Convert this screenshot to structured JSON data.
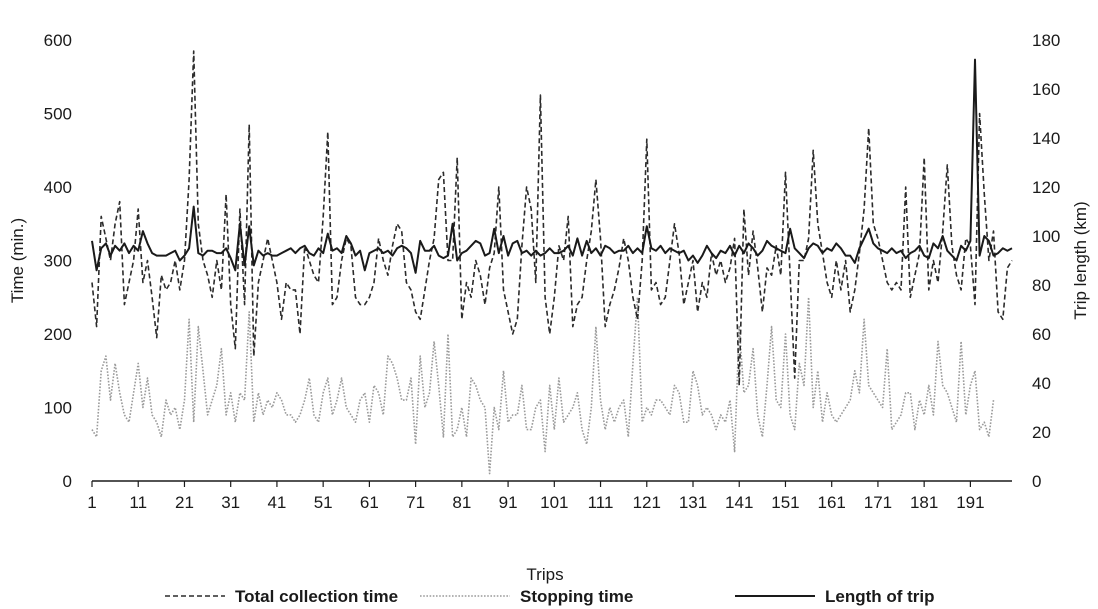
{
  "chart_data": {
    "type": "line",
    "title": "",
    "xlabel": "Trips",
    "ylabel": "Time (min.)",
    "y2label": "Trip length (km)",
    "xlim": [
      1,
      200
    ],
    "ylim": [
      0,
      600
    ],
    "y2lim": [
      0,
      180
    ],
    "grid": false,
    "legend_position": "bottom",
    "x_ticks": [
      "1",
      "11",
      "21",
      "31",
      "41",
      "51",
      "61",
      "71",
      "81",
      "91",
      "101",
      "111",
      "121",
      "131",
      "141",
      "151",
      "161",
      "171",
      "181",
      "191"
    ],
    "y_ticks": [
      "0",
      "100",
      "200",
      "300",
      "400",
      "500",
      "600"
    ],
    "y2_ticks": [
      "0",
      "20",
      "40",
      "60",
      "80",
      "100",
      "120",
      "140",
      "160",
      "180"
    ],
    "series": [
      {
        "name": "Total collection time",
        "axis": "left",
        "style": "dashed",
        "color": "#2b2b2b",
        "values": [
          270,
          210,
          360,
          330,
          300,
          350,
          380,
          240,
          270,
          300,
          370,
          270,
          300,
          250,
          195,
          280,
          260,
          270,
          300,
          260,
          300,
          410,
          585,
          350,
          300,
          280,
          250,
          300,
          260,
          390,
          240,
          180,
          370,
          240,
          485,
          170,
          270,
          300,
          330,
          300,
          270,
          220,
          270,
          260,
          260,
          200,
          320,
          300,
          280,
          270,
          360,
          475,
          240,
          250,
          300,
          330,
          320,
          250,
          240,
          240,
          250,
          270,
          330,
          300,
          280,
          320,
          350,
          340,
          270,
          260,
          230,
          220,
          260,
          300,
          330,
          410,
          420,
          300,
          300,
          440,
          220,
          270,
          250,
          300,
          280,
          240,
          290,
          310,
          400,
          260,
          230,
          200,
          220,
          320,
          400,
          370,
          270,
          525,
          250,
          200,
          250,
          320,
          300,
          360,
          210,
          240,
          250,
          300,
          340,
          410,
          330,
          210,
          240,
          260,
          290,
          330,
          300,
          250,
          220,
          300,
          465,
          260,
          270,
          240,
          250,
          300,
          350,
          310,
          240,
          270,
          300,
          230,
          270,
          250,
          310,
          280,
          300,
          270,
          290,
          330,
          130,
          370,
          280,
          340,
          290,
          230,
          290,
          280,
          320,
          280,
          420,
          280,
          140,
          300,
          300,
          330,
          450,
          350,
          310,
          270,
          250,
          300,
          260,
          300,
          230,
          260,
          310,
          370,
          480,
          350,
          330,
          300,
          270,
          260,
          270,
          260,
          400,
          250,
          280,
          310,
          440,
          260,
          300,
          270,
          340,
          430,
          320,
          280,
          260,
          330,
          320,
          240,
          500,
          390,
          300,
          340,
          230,
          220,
          290,
          300
        ]
      },
      {
        "name": "Stopping time",
        "axis": "left",
        "style": "dotted",
        "color": "#9a9a9a",
        "values": [
          70,
          60,
          150,
          170,
          110,
          160,
          120,
          90,
          80,
          120,
          160,
          100,
          140,
          90,
          80,
          60,
          110,
          90,
          100,
          70,
          110,
          220,
          80,
          210,
          150,
          90,
          110,
          130,
          180,
          90,
          120,
          80,
          120,
          110,
          230,
          80,
          120,
          90,
          110,
          100,
          120,
          110,
          90,
          90,
          80,
          90,
          110,
          140,
          90,
          80,
          120,
          140,
          90,
          110,
          140,
          100,
          90,
          80,
          110,
          120,
          80,
          130,
          120,
          90,
          170,
          160,
          140,
          110,
          110,
          140,
          50,
          170,
          100,
          120,
          190,
          130,
          60,
          200,
          60,
          70,
          100,
          60,
          140,
          130,
          110,
          100,
          10,
          100,
          70,
          150,
          80,
          90,
          90,
          130,
          70,
          70,
          100,
          110,
          40,
          130,
          70,
          140,
          80,
          90,
          100,
          120,
          70,
          50,
          100,
          210,
          110,
          70,
          100,
          80,
          100,
          110,
          60,
          160,
          250,
          80,
          100,
          90,
          110,
          110,
          100,
          90,
          130,
          120,
          80,
          80,
          150,
          130,
          90,
          100,
          90,
          70,
          90,
          80,
          110,
          40,
          210,
          120,
          130,
          180,
          90,
          60,
          130,
          210,
          110,
          100,
          200,
          90,
          70,
          160,
          130,
          250,
          100,
          150,
          80,
          120,
          90,
          80,
          90,
          100,
          110,
          150,
          120,
          220,
          130,
          120,
          110,
          100,
          180,
          70,
          80,
          90,
          120,
          120,
          70,
          110,
          90,
          130,
          90,
          190,
          130,
          120,
          100,
          80,
          190,
          90,
          130,
          150,
          70,
          80,
          60,
          110
        ]
      },
      {
        "name": "Length of trip",
        "axis": "right",
        "style": "solid",
        "color": "#1a1a1a",
        "values": [
          98,
          86,
          95,
          97,
          92,
          96,
          94,
          97,
          93,
          96,
          94,
          102,
          97,
          93,
          92,
          92,
          92,
          93,
          94,
          90,
          92,
          95,
          112,
          93,
          92,
          94,
          94,
          93,
          93,
          95,
          91,
          86,
          105,
          88,
          104,
          88,
          94,
          92,
          93,
          92,
          92,
          93,
          94,
          95,
          93,
          95,
          96,
          93,
          92,
          95,
          93,
          101,
          94,
          95,
          93,
          100,
          97,
          92,
          94,
          86,
          93,
          94,
          95,
          93,
          94,
          92,
          95,
          96,
          95,
          93,
          85,
          98,
          94,
          94,
          96,
          92,
          91,
          92,
          105,
          90,
          93,
          94,
          96,
          98,
          97,
          92,
          93,
          103,
          93,
          100,
          92,
          97,
          98,
          93,
          94,
          92,
          94,
          92,
          93,
          95,
          93,
          93,
          94,
          96,
          92,
          99,
          92,
          98,
          93,
          95,
          92,
          96,
          95,
          93,
          94,
          94,
          96,
          93,
          95,
          93,
          104,
          95,
          94,
          96,
          93,
          95,
          94,
          93,
          94,
          90,
          92,
          89,
          92,
          96,
          93,
          91,
          94,
          93,
          96,
          92,
          96,
          93,
          97,
          95,
          92,
          94,
          98,
          96,
          95,
          94,
          93,
          103,
          95,
          93,
          91,
          95,
          97,
          96,
          93,
          95,
          94,
          97,
          95,
          92,
          92,
          89,
          95,
          99,
          103,
          97,
          95,
          94,
          93,
          95,
          93,
          94,
          91,
          93,
          94,
          96,
          92,
          91,
          97,
          95,
          100,
          94,
          92,
          90,
          96,
          94,
          98,
          172,
          92,
          100,
          98,
          92,
          93,
          95,
          94,
          95
        ]
      }
    ]
  }
}
